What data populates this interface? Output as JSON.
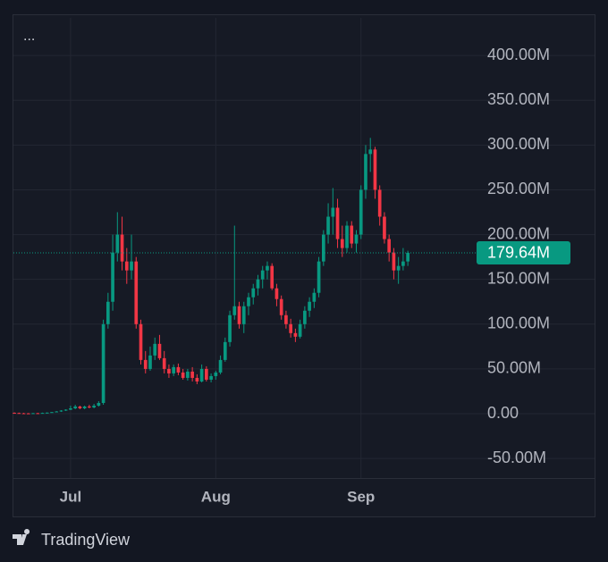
{
  "menu": "...",
  "brand": "TradingView",
  "chart_data": {
    "type": "candlestick",
    "up_color": "#089981",
    "down_color": "#f23645",
    "grid": true,
    "xlim": [
      -0.2,
      98.1
    ],
    "ylim": [
      -71.8,
      442
    ],
    "xticks": [
      {
        "value": 12,
        "label": "Jul"
      },
      {
        "value": 43,
        "label": "Aug"
      },
      {
        "value": 74,
        "label": "Sep"
      }
    ],
    "yticks": [
      {
        "value": -50,
        "label": "-50.00M"
      },
      {
        "value": 0,
        "label": "0.00"
      },
      {
        "value": 50,
        "label": "50.00M"
      },
      {
        "value": 100,
        "label": "100.00M"
      },
      {
        "value": 150,
        "label": "150.00M"
      },
      {
        "value": 200,
        "label": "200.00M"
      },
      {
        "value": 250,
        "label": "250.00M"
      },
      {
        "value": 300,
        "label": "300.00M"
      },
      {
        "value": 350,
        "label": "350.00M"
      },
      {
        "value": 400,
        "label": "400.00M"
      }
    ],
    "last_price": {
      "value": 179.64,
      "label": "179.64M"
    },
    "open": [
      1,
      0.8,
      0.5,
      0.4,
      0.3,
      0.6,
      0.5,
      0.9,
      1.2,
      1.8,
      2.5,
      3.5,
      4.5,
      6,
      8,
      6,
      8,
      7,
      9,
      12,
      100,
      125,
      180,
      200,
      170,
      160,
      170,
      100,
      60,
      50,
      65,
      78,
      62,
      50,
      45,
      52,
      46,
      40,
      47,
      40,
      36,
      50,
      38,
      42,
      46,
      60,
      80,
      110,
      120,
      100,
      120,
      130,
      140,
      150,
      160,
      165,
      140,
      128,
      110,
      100,
      90,
      86,
      100,
      115,
      125,
      135,
      170,
      200,
      220,
      230,
      195,
      185,
      210,
      190,
      200,
      250,
      290,
      295,
      250,
      220,
      195,
      180,
      160,
      165,
      170
    ],
    "high": [
      1.5,
      1.2,
      1,
      0.8,
      0.9,
      1,
      1.2,
      1.5,
      2,
      3,
      4,
      5,
      9,
      10,
      9,
      9,
      10,
      11,
      14,
      105,
      135,
      200,
      225,
      220,
      185,
      200,
      175,
      105,
      70,
      75,
      85,
      88,
      70,
      55,
      55,
      56,
      50,
      50,
      52,
      44,
      55,
      53,
      45,
      48,
      65,
      85,
      115,
      210,
      125,
      125,
      135,
      145,
      155,
      165,
      170,
      168,
      145,
      132,
      115,
      106,
      95,
      105,
      120,
      130,
      140,
      175,
      205,
      235,
      252,
      240,
      210,
      215,
      215,
      205,
      255,
      300,
      308,
      298,
      255,
      225,
      200,
      185,
      175,
      185,
      182
    ],
    "low": [
      0.5,
      0.3,
      0.2,
      0.1,
      0.2,
      0.3,
      0.4,
      0.6,
      1,
      1.5,
      2,
      3,
      4,
      5,
      5,
      5,
      6,
      6,
      8,
      10,
      95,
      115,
      170,
      160,
      145,
      150,
      95,
      55,
      45,
      48,
      60,
      60,
      45,
      40,
      42,
      43,
      38,
      37,
      36,
      33,
      35,
      36,
      35,
      38,
      44,
      58,
      75,
      105,
      95,
      90,
      110,
      122,
      132,
      140,
      150,
      138,
      120,
      105,
      95,
      85,
      80,
      84,
      95,
      108,
      118,
      130,
      165,
      190,
      200,
      185,
      175,
      180,
      185,
      180,
      195,
      240,
      270,
      240,
      210,
      190,
      170,
      150,
      145,
      160,
      165
    ],
    "close": [
      0.8,
      0.5,
      0.4,
      0.3,
      0.6,
      0.5,
      0.9,
      1.2,
      1.8,
      2.5,
      3.5,
      4.5,
      6,
      8,
      6,
      8,
      7,
      9,
      12,
      100,
      125,
      180,
      200,
      170,
      160,
      170,
      100,
      60,
      50,
      65,
      78,
      62,
      50,
      45,
      52,
      46,
      40,
      47,
      40,
      36,
      50,
      38,
      42,
      46,
      60,
      80,
      110,
      120,
      100,
      120,
      130,
      140,
      150,
      160,
      165,
      140,
      128,
      110,
      100,
      90,
      86,
      100,
      115,
      125,
      135,
      170,
      200,
      220,
      230,
      195,
      185,
      210,
      190,
      200,
      250,
      290,
      295,
      250,
      220,
      195,
      180,
      160,
      165,
      170,
      179.64
    ]
  }
}
